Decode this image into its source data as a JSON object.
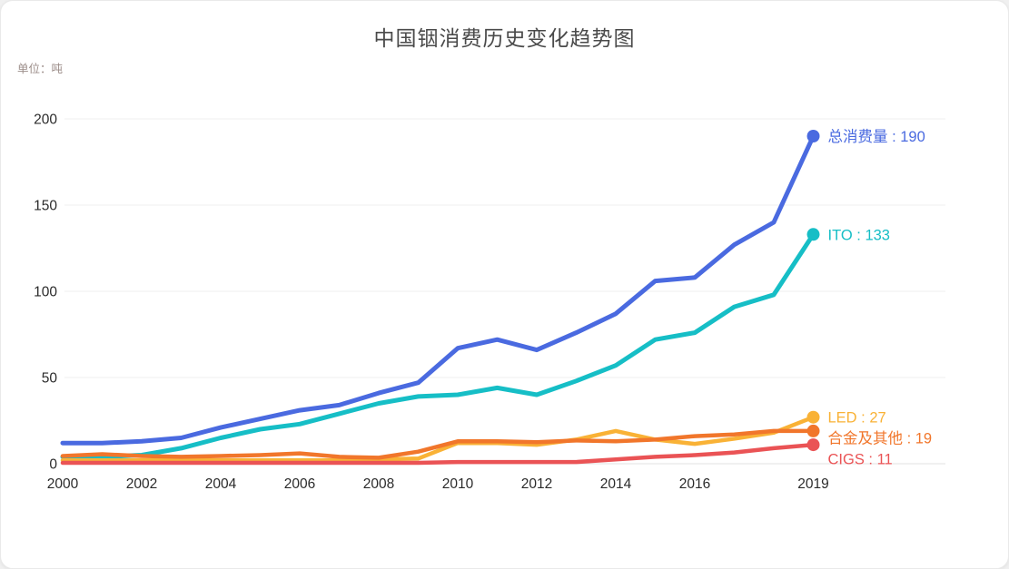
{
  "card": {
    "title": "中国铟消费历史变化趋势图",
    "unit_label": "单位：吨"
  },
  "chart_data": {
    "type": "line",
    "title": "中国铟消费历史变化趋势图",
    "ylabel": "单位：吨",
    "xlabel": "",
    "grid": true,
    "legend_position": "inline-end-labels",
    "ylim": [
      0,
      200
    ],
    "y_ticks": [
      0,
      50,
      100,
      150,
      200
    ],
    "x": [
      2000,
      2001,
      2002,
      2003,
      2004,
      2005,
      2006,
      2007,
      2008,
      2009,
      2010,
      2011,
      2012,
      2013,
      2014,
      2015,
      2016,
      2017,
      2018,
      2019
    ],
    "x_tick_labels": [
      "2000",
      "2002",
      "2004",
      "2006",
      "2008",
      "2010",
      "2012",
      "2014",
      "2016",
      "2019"
    ],
    "series": [
      {
        "id": "total",
        "name": "总消费量",
        "end_value": 190,
        "end_label": "总消费量 : 190",
        "color": "#4a6ae0",
        "width": 5,
        "values": [
          12,
          12,
          13,
          15,
          21,
          26,
          31,
          34,
          41,
          47,
          67,
          72,
          66,
          76,
          87,
          106,
          108,
          127,
          140,
          190
        ]
      },
      {
        "id": "ito",
        "name": "ITO",
        "end_value": 133,
        "end_label": "ITO : 133",
        "color": "#16bec6",
        "width": 5,
        "values": [
          4,
          4,
          5,
          9,
          15,
          20,
          23,
          29,
          35,
          39,
          40,
          44,
          40,
          48,
          57,
          72,
          76,
          91,
          98,
          133
        ]
      },
      {
        "id": "led",
        "name": "LED",
        "end_value": 27,
        "end_label": "LED : 27",
        "color": "#f9b236",
        "width": 4.5,
        "values": [
          2,
          2,
          2,
          2,
          2,
          2,
          2,
          2,
          2.5,
          3,
          12,
          12,
          11,
          14,
          19,
          14,
          11.5,
          14.5,
          18,
          27
        ]
      },
      {
        "id": "alloy-others",
        "name": "合金及其他",
        "end_value": 19,
        "end_label": "合金及其他 : 19",
        "color": "#f1762b",
        "width": 4.5,
        "values": [
          4.5,
          5.5,
          4.5,
          4,
          4.5,
          5,
          6,
          4,
          3.5,
          7,
          13,
          13,
          12.5,
          13.5,
          13,
          14,
          16,
          17,
          19,
          19
        ]
      },
      {
        "id": "cigs",
        "name": "CIGS",
        "end_value": 11,
        "end_label": "CIGS : 11",
        "color": "#ea5355",
        "width": 4.5,
        "values": [
          0.5,
          0.5,
          0.5,
          0.5,
          0.5,
          0.5,
          0.5,
          0.5,
          0.5,
          0.5,
          1,
          1,
          1,
          1,
          2.5,
          4,
          5,
          6.5,
          9,
          11
        ]
      }
    ]
  }
}
